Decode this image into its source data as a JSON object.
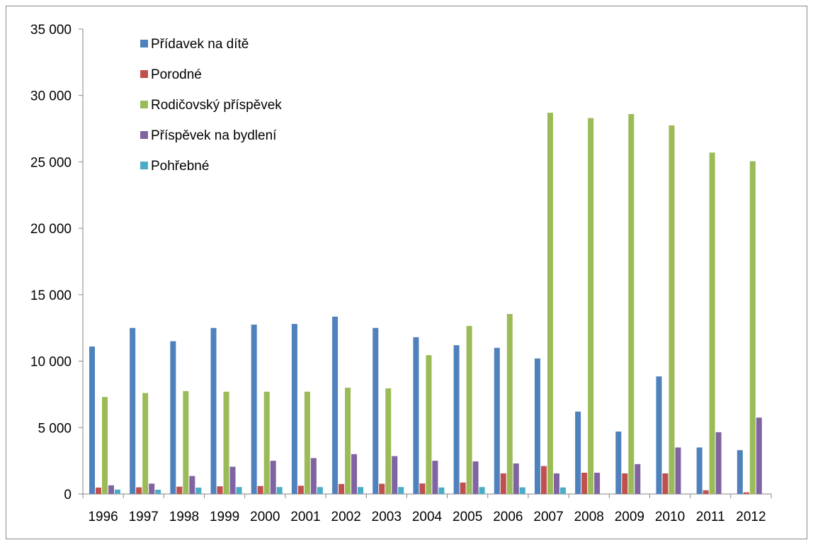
{
  "chart_data": {
    "type": "bar",
    "title": "",
    "xlabel": "",
    "ylabel": "",
    "ylim": [
      0,
      35000
    ],
    "y_ticks": [
      "0",
      "5 000",
      "10 000",
      "15 000",
      "20 000",
      "25 000",
      "30 000",
      "35 000"
    ],
    "grid": false,
    "legend_position": "top-left",
    "categories": [
      "1996",
      "1997",
      "1998",
      "1999",
      "2000",
      "2001",
      "2002",
      "2003",
      "2004",
      "2005",
      "2006",
      "2007",
      "2008",
      "2009",
      "2010",
      "2011",
      "2012"
    ],
    "series": [
      {
        "name": "Přídavek na dítě",
        "color": "#4f81bd",
        "values": [
          11100,
          12500,
          11500,
          12500,
          12750,
          12800,
          13350,
          12500,
          11800,
          11200,
          11000,
          10200,
          6200,
          4700,
          8850,
          3500,
          3300
        ]
      },
      {
        "name": "Porodné",
        "color": "#c0504d",
        "values": [
          480,
          500,
          550,
          580,
          600,
          620,
          750,
          770,
          790,
          860,
          1550,
          2100,
          1600,
          1550,
          1550,
          280,
          120
        ]
      },
      {
        "name": "Rodičovský příspěvek",
        "color": "#9bbb59",
        "values": [
          7300,
          7600,
          7750,
          7700,
          7700,
          7700,
          8000,
          7950,
          10450,
          12650,
          13550,
          28700,
          28300,
          28600,
          27750,
          25700,
          25050
        ]
      },
      {
        "name": "Příspěvek na bydlení",
        "color": "#8064a2",
        "values": [
          650,
          780,
          1350,
          2050,
          2500,
          2700,
          3000,
          2850,
          2500,
          2450,
          2300,
          1550,
          1600,
          2250,
          3500,
          4650,
          5750
        ]
      },
      {
        "name": "Pohřebné",
        "color": "#4bacc6",
        "values": [
          330,
          320,
          480,
          520,
          520,
          520,
          520,
          520,
          490,
          520,
          500,
          490,
          0,
          0,
          0,
          0,
          0
        ]
      }
    ]
  }
}
